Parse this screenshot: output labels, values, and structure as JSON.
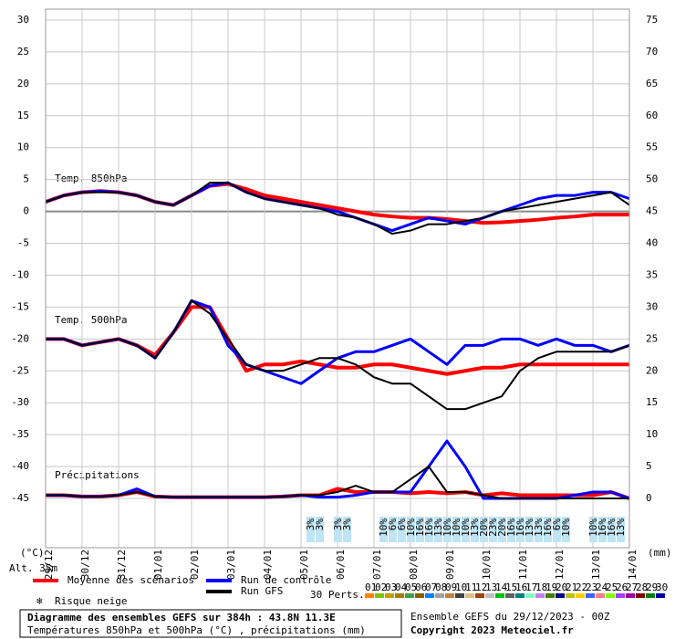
{
  "chart_data": {
    "type": "line",
    "y_unit_label": "(°C)",
    "y2_unit_label": "(mm)",
    "altitude": "Alt. 35m",
    "annotations": [
      "Temp. 850hPa",
      "Temp. 500hPa",
      "Précipitations"
    ],
    "x": [
      0,
      12,
      24,
      36,
      48,
      60,
      72,
      84,
      96,
      108,
      120,
      132,
      144,
      156,
      168,
      180,
      192,
      204,
      216,
      228,
      240,
      252,
      264,
      276,
      288,
      300,
      312,
      324,
      336,
      348,
      360,
      372,
      384
    ],
    "xlim": [
      0,
      384
    ],
    "xticks": [
      {
        "value": 0,
        "label": "29/12"
      },
      {
        "value": 24,
        "label": "30/12"
      },
      {
        "value": 48,
        "label": "31/12"
      },
      {
        "value": 72,
        "label": "01/01"
      },
      {
        "value": 96,
        "label": "02/01"
      },
      {
        "value": 120,
        "label": "03/01"
      },
      {
        "value": 144,
        "label": "04/01"
      },
      {
        "value": 168,
        "label": "05/01"
      },
      {
        "value": 192,
        "label": "06/01"
      },
      {
        "value": 216,
        "label": "07/01"
      },
      {
        "value": 240,
        "label": "08/01"
      },
      {
        "value": 264,
        "label": "09/01"
      },
      {
        "value": 288,
        "label": "10/01"
      },
      {
        "value": 312,
        "label": "11/01"
      },
      {
        "value": 336,
        "label": "12/01"
      },
      {
        "value": 360,
        "label": "13/01"
      },
      {
        "value": 384,
        "label": "14/01"
      }
    ],
    "ylim": [
      -45,
      30
    ],
    "yticks": [
      30,
      25,
      20,
      15,
      10,
      5,
      0,
      -5,
      -10,
      -15,
      -20,
      -25,
      -30,
      -35,
      -40,
      -45
    ],
    "y2lim": [
      0,
      75
    ],
    "y2ticks": [
      75,
      70,
      65,
      60,
      55,
      50,
      45,
      40,
      35,
      30,
      25,
      20,
      15,
      10,
      5,
      0
    ],
    "grid": true,
    "series": [
      {
        "color": "#ff0000",
        "values": [
          1.5,
          2.5,
          3,
          3.2,
          3,
          2.5,
          1.5,
          1,
          2.5,
          4,
          4.3,
          3.5,
          2.5,
          2,
          1.5,
          1,
          0.5,
          0,
          -0.5,
          -0.8,
          -1,
          -1,
          -1.2,
          -1.5,
          -1.8,
          -1.7,
          -1.5,
          -1.3,
          -1,
          -0.8,
          -0.5,
          -0.5,
          -0.5
        ]
      },
      {
        "color": "#0000ff",
        "values": [
          1.5,
          2.5,
          3,
          3.2,
          3,
          2.5,
          1.5,
          1,
          2.5,
          4,
          4.5,
          3,
          2,
          1.5,
          1,
          0.5,
          0,
          -1,
          -2,
          -3,
          -2,
          -1,
          -1.5,
          -2,
          -1,
          0,
          1,
          2,
          2.5,
          2.5,
          3,
          3,
          2
        ]
      },
      {
        "color": "#000000",
        "values": [
          1.5,
          2.5,
          3,
          3,
          3,
          2.5,
          1.5,
          1,
          2.5,
          4.5,
          4.5,
          3,
          2,
          1.5,
          1,
          0.5,
          -0.5,
          -1,
          -2,
          -3.5,
          -3,
          -2,
          -2,
          -1.5,
          -1,
          0,
          0.5,
          1,
          1.5,
          2,
          2.5,
          3,
          1
        ]
      },
      {
        "color": "#ff0000",
        "values": [
          -20,
          -20,
          -21,
          -20.5,
          -20,
          -21,
          -22.5,
          -19,
          -15,
          -15,
          -20,
          -25,
          -24,
          -24,
          -23.5,
          -24,
          -24.5,
          -24.5,
          -24,
          -24,
          -24.5,
          -25,
          -25.5,
          -25,
          -24.5,
          -24.5,
          -24,
          -24,
          -24,
          -24,
          -24,
          -24,
          -24
        ]
      },
      {
        "color": "#0000ff",
        "values": [
          -20,
          -20,
          -21,
          -20.5,
          -20,
          -21,
          -23,
          -19,
          -14,
          -15,
          -21,
          -24,
          -25,
          -26,
          -27,
          -25,
          -23,
          -22,
          -22,
          -21,
          -20,
          -22,
          -24,
          -21,
          -21,
          -20,
          -20,
          -21,
          -20,
          -21,
          -21,
          -22,
          -21
        ]
      },
      {
        "color": "#000000",
        "values": [
          -20,
          -20,
          -21,
          -20.5,
          -20,
          -21,
          -23,
          -19,
          -14,
          -16,
          -20,
          -24,
          -25,
          -25,
          -24,
          -23,
          -23,
          -24,
          -26,
          -27,
          -27,
          -29,
          -31,
          -31,
          -30,
          -29,
          -25,
          -23,
          -22,
          -22,
          -22,
          -22,
          -21
        ]
      },
      {
        "color": "#ff0000",
        "axis": "y2",
        "values": [
          0.5,
          0.5,
          0.3,
          0.3,
          0.5,
          1,
          0.3,
          0.2,
          0.2,
          0.2,
          0.2,
          0.2,
          0.2,
          0.3,
          0.5,
          0.5,
          1.5,
          1,
          1,
          1,
          0.8,
          1,
          0.8,
          1,
          0.5,
          0.8,
          0.5,
          0.5,
          0.5,
          0.5,
          0.5,
          1,
          0
        ]
      },
      {
        "color": "#0000ff",
        "axis": "y2",
        "values": [
          0.5,
          0.5,
          0.3,
          0.3,
          0.5,
          1.5,
          0.3,
          0.2,
          0.2,
          0.2,
          0.2,
          0.2,
          0.2,
          0.3,
          0.5,
          0.2,
          0.2,
          0.5,
          1,
          1,
          1,
          5,
          9,
          5,
          0,
          0,
          0,
          0,
          0,
          0.5,
          1,
          1,
          0
        ]
      },
      {
        "color": "#000000",
        "axis": "y2",
        "values": [
          0.5,
          0.5,
          0.3,
          0.3,
          0.5,
          1,
          0.3,
          0.2,
          0.2,
          0.2,
          0.2,
          0.2,
          0.2,
          0.3,
          0.5,
          0.5,
          1,
          2,
          1,
          1,
          3,
          5,
          1,
          1,
          0.5,
          0,
          0,
          0,
          0,
          0,
          0,
          0,
          0
        ]
      }
    ],
    "legend": [
      {
        "name": "Moyenne des scénarios",
        "color": "#ff0000"
      },
      {
        "name": "Run de contrôle",
        "color": "#0000ff"
      },
      {
        "name": "Run GFS",
        "color": "#000000"
      }
    ],
    "snow_legend": "Risque neige",
    "snow_risk": {
      "x": [
        174,
        180,
        192,
        198,
        222,
        228,
        234,
        240,
        246,
        252,
        258,
        264,
        270,
        276,
        282,
        288,
        294,
        300,
        306,
        312,
        318,
        324,
        330,
        336,
        342,
        360,
        366,
        372,
        378
      ],
      "values": [
        3,
        3,
        3,
        3,
        10,
        6,
        6,
        10,
        16,
        16,
        13,
        10,
        10,
        10,
        13,
        20,
        23,
        20,
        16,
        16,
        13,
        13,
        16,
        6,
        10,
        10,
        16,
        16,
        13
      ],
      "value_labels": [
        "3%",
        "3%",
        "3%",
        "3%",
        "10%",
        "6%",
        "6%",
        "10%",
        "16%",
        "16%",
        "13%",
        "10%",
        "10%",
        "10%",
        "13%",
        "20%",
        "23%",
        "20%",
        "16%",
        "16%",
        "13%",
        "13%",
        "16%",
        "6%",
        "10%",
        "10%",
        "16%",
        "16%",
        "13%"
      ]
    },
    "members_label": "30 Perts.",
    "members": [
      {
        "label": "01",
        "color": "#ff8000"
      },
      {
        "label": "02",
        "color": "#80c000"
      },
      {
        "label": "03",
        "color": "#c0a000"
      },
      {
        "label": "04",
        "color": "#a08000"
      },
      {
        "label": "05",
        "color": "#40a040"
      },
      {
        "label": "06",
        "color": "#806000"
      },
      {
        "label": "07",
        "color": "#0080ff"
      },
      {
        "label": "08",
        "color": "#a0a0a0"
      },
      {
        "label": "09",
        "color": "#c08040"
      },
      {
        "label": "10",
        "color": "#404040"
      },
      {
        "label": "11",
        "color": "#e0c080"
      },
      {
        "label": "12",
        "color": "#a04000"
      },
      {
        "label": "13",
        "color": "#c0c0c0"
      },
      {
        "label": "14",
        "color": "#00c000"
      },
      {
        "label": "15",
        "color": "#606060"
      },
      {
        "label": "16",
        "color": "#008080"
      },
      {
        "label": "17",
        "color": "#80ffc0"
      },
      {
        "label": "18",
        "color": "#c080ff"
      },
      {
        "label": "19",
        "color": "#408000"
      },
      {
        "label": "20",
        "color": "#000080"
      },
      {
        "label": "21",
        "color": "#c0c000"
      },
      {
        "label": "22",
        "color": "#ffd000"
      },
      {
        "label": "23",
        "color": "#4060ff"
      },
      {
        "label": "24",
        "color": "#ff8080"
      },
      {
        "label": "25",
        "color": "#80ff00"
      },
      {
        "label": "26",
        "color": "#a040ff"
      },
      {
        "label": "27",
        "color": "#a000a0"
      },
      {
        "label": "28",
        "color": "#800000"
      },
      {
        "label": "29",
        "color": "#008000"
      },
      {
        "label": "30",
        "color": "#0000a0"
      }
    ],
    "title": "Diagramme des ensembles GEFS sur 384h : 43.8N 11.3E",
    "subtitle": "Températures 850hPa et 500hPa (°C) , précipitations (mm)",
    "run_info": "Ensemble GEFS du 29/12/2023 - 00Z",
    "copyright": "Copyright 2023 Meteociel.fr"
  }
}
